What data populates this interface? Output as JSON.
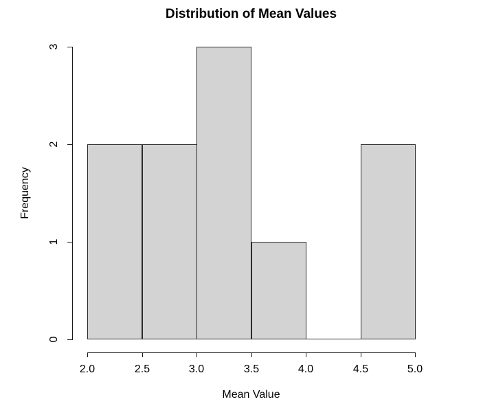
{
  "chart_data": {
    "type": "bar",
    "kind": "histogram",
    "title": "Distribution of Mean Values",
    "xlabel": "Mean Value",
    "ylabel": "Frequency",
    "bins": [
      2.0,
      2.5,
      3.0,
      3.5,
      4.0,
      4.5,
      5.0
    ],
    "counts": [
      2,
      2,
      3,
      1,
      0,
      2
    ],
    "xtick_labels": [
      "2.0",
      "2.5",
      "3.0",
      "3.5",
      "4.0",
      "4.5",
      "5.0"
    ],
    "xtick_values": [
      2.0,
      2.5,
      3.0,
      3.5,
      4.0,
      4.5,
      5.0
    ],
    "ytick_labels": [
      "0",
      "1",
      "2",
      "3"
    ],
    "ytick_values": [
      0,
      1,
      2,
      3
    ],
    "xlim": [
      2.0,
      5.0
    ],
    "ylim": [
      0,
      3
    ],
    "grid": "off",
    "legend": "none",
    "bar_fill_color": "#d3d3d3",
    "bar_border_color": "#2b2b2b",
    "axis_color": "#1a1a1a",
    "text_color": "#000000"
  }
}
